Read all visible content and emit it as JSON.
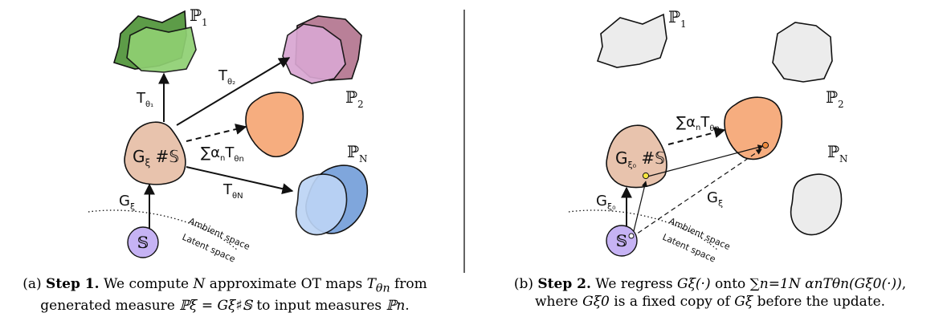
{
  "colors": {
    "generated_fill": "#e8c3ad",
    "latent_fill": "#c6b3f4",
    "p1_back": "#5d9c48",
    "p1_front": "#8fd072",
    "p2_back": "#b98098",
    "p2_front": "#d9a6d2",
    "pn_back": "#7fa6dc",
    "pn_front": "#bcd4f5",
    "target_fill": "#f6ad7f",
    "gray_fill": "#ececec"
  },
  "left": {
    "p1": "ℙ",
    "p1_sub": "1",
    "p2": "ℙ",
    "p2_sub": "2",
    "pn": "ℙ",
    "pn_sub": "N",
    "t1": "T",
    "t1_sub": "θ₁",
    "t2": "T",
    "t2_sub": "θ₂",
    "tn": "T",
    "tn_sub": "θN",
    "sum": "∑α",
    "sum_n": "n",
    "sum_t": "T",
    "sum_sub": "θn",
    "gen": "G",
    "gen_sub": "ξ",
    "gen_rest": " #𝕊",
    "gxi": "G",
    "gxi_sub": "ξ",
    "latent": "𝕊",
    "ambient": "Ambient space",
    "latent_space": "Latent space"
  },
  "right": {
    "p1": "ℙ",
    "p1_sub": "1",
    "p2": "ℙ",
    "p2_sub": "2",
    "pn": "ℙ",
    "pn_sub": "N",
    "sum": "∑α",
    "sum_n": "n",
    "sum_t": "T",
    "sum_sub": "θn",
    "gen": "G",
    "gen_sub": "ξ₀",
    "gen_rest": " #𝕊",
    "gxi0": "G",
    "gxi0_sub": "ξ₀",
    "gxi": "G",
    "gxi_sub": "ξ",
    "latent": "𝕊",
    "ambient": "Ambient space",
    "latent_space": "Latent space"
  },
  "caption_a": {
    "prefix": "(a) ",
    "step": "Step 1.",
    "text1": " We compute ",
    "N": "N",
    "text2": " approximate OT maps ",
    "T": "T",
    "theta": "θn",
    "text3": " from generated measure ",
    "Pxi": "ℙξ = Gξ♯𝕊",
    "text4": " to input measures ",
    "Pn": "ℙn",
    "text5": "."
  },
  "caption_b": {
    "prefix": "(b) ",
    "step": "Step 2.",
    "text1": " We regress ",
    "G": "Gξ(·)",
    "text2": " onto ",
    "sum": "∑n=1N αnTθn(Gξ0(·))",
    "text3": ", where ",
    "G0": "Gξ0",
    "text4": " is a fixed copy of ",
    "G2": "Gξ",
    "text5": " before the update."
  }
}
